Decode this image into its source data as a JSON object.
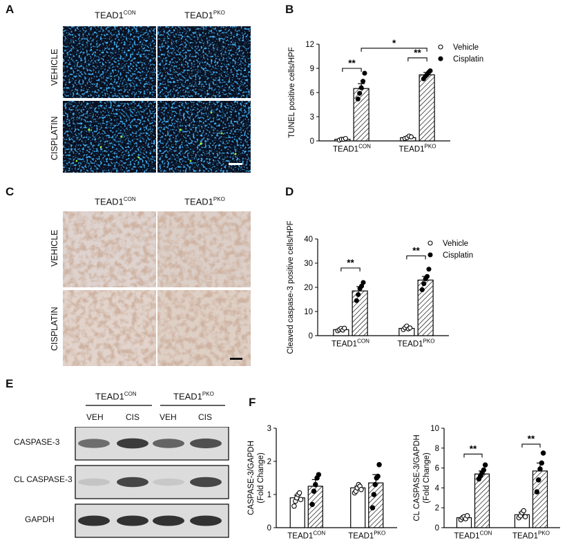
{
  "panel_labels": {
    "a": "A",
    "b": "B",
    "c": "C",
    "d": "D",
    "e": "E",
    "f": "F"
  },
  "micro": {
    "col1": "TEAD1",
    "col1_sup": "CON",
    "col2": "TEAD1",
    "col2_sup": "PKO",
    "row1": "VEHICLE",
    "row2": "CISPLATIN"
  },
  "blot": {
    "group1": "TEAD1",
    "group1_sup": "CON",
    "group2": "TEAD1",
    "group2_sup": "PKO",
    "lanes": [
      "VEH",
      "CIS",
      "VEH",
      "CIS"
    ],
    "rows": [
      "CASPASE-3",
      "CL CASPASE-3",
      "GAPDH"
    ],
    "intensity": [
      [
        0.55,
        0.8,
        0.6,
        0.7
      ],
      [
        0.12,
        0.75,
        0.1,
        0.75
      ],
      [
        0.85,
        0.85,
        0.85,
        0.85
      ]
    ]
  },
  "legend": {
    "vehicle": "Vehicle",
    "cisplatin": "Cisplatin"
  },
  "chart_data": [
    {
      "id": "B",
      "type": "bar",
      "categories": [
        "TEAD1CON",
        "TEAD1PKO"
      ],
      "cat_main": [
        "TEAD1",
        "TEAD1"
      ],
      "cat_sup": [
        "CON",
        "PKO"
      ],
      "ylabel": "TUNEL positive cells/HPF",
      "ylim": [
        0,
        12
      ],
      "yticks": [
        0,
        3,
        6,
        9,
        12
      ],
      "series": [
        {
          "name": "Vehicle",
          "values": [
            0.2,
            0.4
          ],
          "err": [
            0.1,
            0.15
          ],
          "points": [
            [
              0.1,
              0.2,
              0.2,
              0.3
            ],
            [
              0.3,
              0.4,
              0.6,
              0.5
            ]
          ]
        },
        {
          "name": "Cisplatin",
          "values": [
            6.5,
            8.2
          ],
          "err": [
            0.6,
            0.3
          ],
          "points": [
            [
              5.2,
              5.9,
              6.6,
              7.4,
              8.4
            ],
            [
              7.7,
              8.0,
              8.2,
              8.5,
              8.7
            ]
          ]
        }
      ],
      "sig": [
        {
          "label": "**",
          "from": [
            0,
            0
          ],
          "to": [
            0,
            1
          ],
          "y": 9.0
        },
        {
          "label": "**",
          "from": [
            1,
            0
          ],
          "to": [
            1,
            1
          ],
          "y": 10.3
        },
        {
          "label": "*",
          "from": [
            0,
            1
          ],
          "to": [
            1,
            1
          ],
          "y": 11.5
        }
      ],
      "legend": true
    },
    {
      "id": "D",
      "type": "bar",
      "categories": [
        "TEAD1CON",
        "TEAD1PKO"
      ],
      "cat_main": [
        "TEAD1",
        "TEAD1"
      ],
      "cat_sup": [
        "CON",
        "PKO"
      ],
      "ylabel": "Cleaved caspase-3 positive cells/HPF",
      "ylim": [
        0,
        40
      ],
      "yticks": [
        0,
        10,
        20,
        30,
        40
      ],
      "series": [
        {
          "name": "Vehicle",
          "values": [
            2.5,
            3.0
          ],
          "err": [
            0.5,
            0.6
          ],
          "points": [
            [
              2.0,
              2.5,
              3.0,
              2.3,
              3.1
            ],
            [
              2.5,
              3.3,
              4.0,
              2.8,
              3.2
            ]
          ]
        },
        {
          "name": "Cisplatin",
          "values": [
            18.5,
            23.0
          ],
          "err": [
            1.8,
            1.5
          ],
          "points": [
            [
              14.5,
              17.0,
              19.5,
              20.5,
              22.0
            ],
            [
              19.0,
              21.5,
              23.5,
              24.5,
              27.5
            ]
          ]
        }
      ],
      "sig": [
        {
          "label": "**",
          "from": [
            0,
            0
          ],
          "to": [
            0,
            1
          ],
          "y": 28.0
        },
        {
          "label": "**",
          "from": [
            1,
            0
          ],
          "to": [
            1,
            1
          ],
          "y": 33.0
        }
      ],
      "legend": true
    },
    {
      "id": "F1",
      "type": "bar",
      "categories": [
        "TEAD1CON",
        "TEAD1PKO"
      ],
      "cat_main": [
        "TEAD1",
        "TEAD1"
      ],
      "cat_sup": [
        "CON",
        "PKO"
      ],
      "ylabel": "CASPASE-3/GAPDH",
      "ylabel2": "(Fold Change)",
      "ylim": [
        0,
        3
      ],
      "yticks": [
        0,
        1,
        2,
        3
      ],
      "series": [
        {
          "name": "Vehicle",
          "values": [
            0.9,
            1.2
          ],
          "err": [
            0.08,
            0.05
          ],
          "points": [
            [
              0.65,
              0.8,
              0.9,
              1.0,
              1.05,
              0.85
            ],
            [
              1.05,
              1.1,
              1.2,
              1.3,
              1.25,
              1.15
            ]
          ]
        },
        {
          "name": "Cisplatin",
          "values": [
            1.25,
            1.35
          ],
          "err": [
            0.2,
            0.25
          ],
          "points": [
            [
              0.7,
              1.1,
              1.3,
              1.5,
              1.6
            ],
            [
              0.6,
              1.0,
              1.3,
              1.5,
              1.55,
              1.9
            ]
          ]
        }
      ],
      "sig": [],
      "legend": false
    },
    {
      "id": "F2",
      "type": "bar",
      "categories": [
        "TEAD1CON",
        "TEAD1PKO"
      ],
      "cat_main": [
        "TEAD1",
        "TEAD1"
      ],
      "cat_sup": [
        "CON",
        "PKO"
      ],
      "ylabel": "CL CASPASE-3/GAPDH",
      "ylabel2": "(Fold Change)",
      "ylim": [
        0,
        10
      ],
      "yticks": [
        0,
        2,
        4,
        6,
        8,
        10
      ],
      "series": [
        {
          "name": "Vehicle",
          "values": [
            1.0,
            1.3
          ],
          "err": [
            0.15,
            0.25
          ],
          "points": [
            [
              0.8,
              1.0,
              1.1,
              0.9,
              1.2
            ],
            [
              1.0,
              1.2,
              1.5,
              1.7,
              1.1
            ]
          ]
        },
        {
          "name": "Cisplatin",
          "values": [
            5.4,
            5.7
          ],
          "err": [
            0.3,
            0.8
          ],
          "points": [
            [
              4.9,
              5.2,
              5.5,
              5.8,
              6.3
            ],
            [
              3.6,
              4.8,
              5.9,
              6.5,
              7.5
            ]
          ]
        }
      ],
      "sig": [
        {
          "label": "**",
          "from": [
            0,
            0
          ],
          "to": [
            0,
            1
          ],
          "y": 7.4
        },
        {
          "label": "**",
          "from": [
            1,
            0
          ],
          "to": [
            1,
            1
          ],
          "y": 8.4
        }
      ],
      "legend": false
    }
  ]
}
